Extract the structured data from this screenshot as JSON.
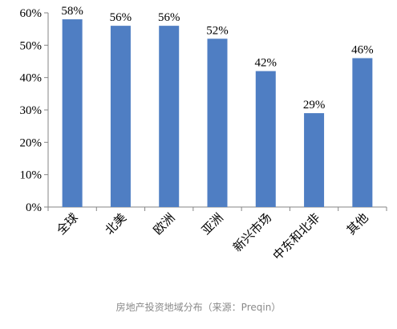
{
  "chart_data": {
    "type": "bar",
    "categories": [
      "全球",
      "北美",
      "欧洲",
      "亚洲",
      "新兴市场",
      "中东和北非",
      "其他"
    ],
    "values": [
      58,
      56,
      56,
      52,
      42,
      29,
      46
    ],
    "data_labels": [
      "58%",
      "56%",
      "56%",
      "52%",
      "42%",
      "29%",
      "46%"
    ],
    "yticks": [
      "0%",
      "10%",
      "20%",
      "30%",
      "40%",
      "50%",
      "60%"
    ],
    "ylim": [
      0,
      60
    ],
    "grid": false,
    "legend": "none",
    "bar_color": "#4f7ec3",
    "axis_color": "#868686"
  },
  "caption": "房地产投资地域分布（来源：Preqin）"
}
